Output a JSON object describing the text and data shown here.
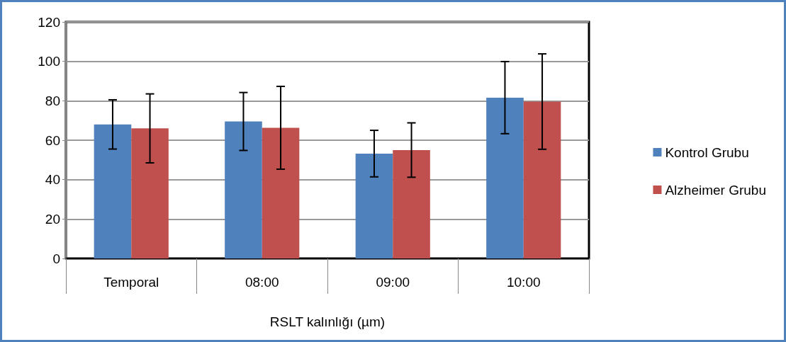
{
  "chart_data": {
    "type": "bar",
    "xlabel": "RSLT kalınlığı (µm)",
    "categories": [
      "Temporal",
      "08:00",
      "09:00",
      "10:00"
    ],
    "series": [
      {
        "name": "Kontrol Grubu",
        "color": "#4f81bd",
        "values": [
          68,
          69.5,
          53.2,
          81.6
        ],
        "errors": [
          12.5,
          14.7,
          11.8,
          18.3
        ]
      },
      {
        "name": "Alzheimer Grubu",
        "color": "#c0504d",
        "values": [
          66,
          66.3,
          55,
          79.6
        ],
        "errors": [
          17.5,
          21,
          13.8,
          24.2
        ]
      }
    ],
    "ylim": [
      0,
      120
    ],
    "yticks": [
      0,
      20,
      40,
      60,
      80,
      100,
      120
    ],
    "grid": "y",
    "legend": "right"
  }
}
